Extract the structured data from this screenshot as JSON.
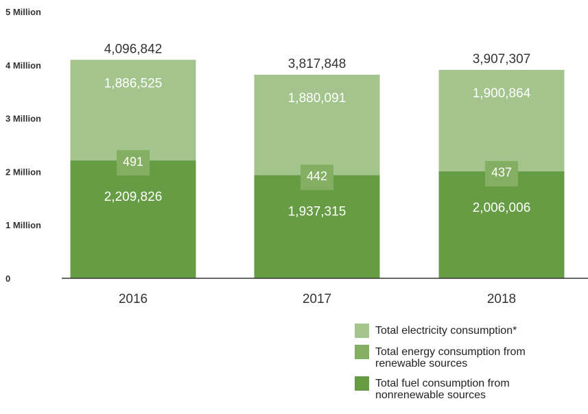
{
  "colors": {
    "fuel": "#669c44",
    "renewable": "#84af62",
    "electricity": "#a3c48c",
    "axis": "#333333",
    "text": "#333333"
  },
  "chart_data": {
    "type": "bar",
    "stacked": true,
    "categories": [
      "2016",
      "2017",
      "2018"
    ],
    "ylim": [
      0,
      5000000
    ],
    "yticks": [
      {
        "value": 0,
        "label": "0"
      },
      {
        "value": 1000000,
        "label": "1 Million"
      },
      {
        "value": 2000000,
        "label": "2 Million"
      },
      {
        "value": 3000000,
        "label": "3 Million"
      },
      {
        "value": 4000000,
        "label": "4 Million"
      },
      {
        "value": 5000000,
        "label": "5 Million"
      }
    ],
    "series": [
      {
        "name": "Total fuel consumption from nonrenewable sources",
        "key": "fuel",
        "values": [
          2209826,
          1937315,
          2006006
        ],
        "labels": [
          "2,209,826",
          "1,937,315",
          "2,006,006"
        ]
      },
      {
        "name": "Total energy consumption from renewable sources",
        "key": "renewable",
        "values": [
          491,
          442,
          437
        ],
        "labels": [
          "491",
          "442",
          "437"
        ]
      },
      {
        "name": "Total electricity consumption*",
        "key": "electricity",
        "values": [
          1886525,
          1880091,
          1900864
        ],
        "labels": [
          "1,886,525",
          "1,880,091",
          "1,900,864"
        ]
      }
    ],
    "totals": [
      4096842,
      3817848,
      3907307
    ],
    "total_labels": [
      "4,096,842",
      "3,817,848",
      "3,907,307"
    ],
    "legend_position": "bottom-right"
  },
  "legend": [
    {
      "label": "Total electricity consumption*",
      "key": "electricity"
    },
    {
      "label": "Total energy consumption from renewable sources",
      "key": "renewable"
    },
    {
      "label": "Total fuel consumption from nonrenewable sources",
      "key": "fuel"
    }
  ]
}
